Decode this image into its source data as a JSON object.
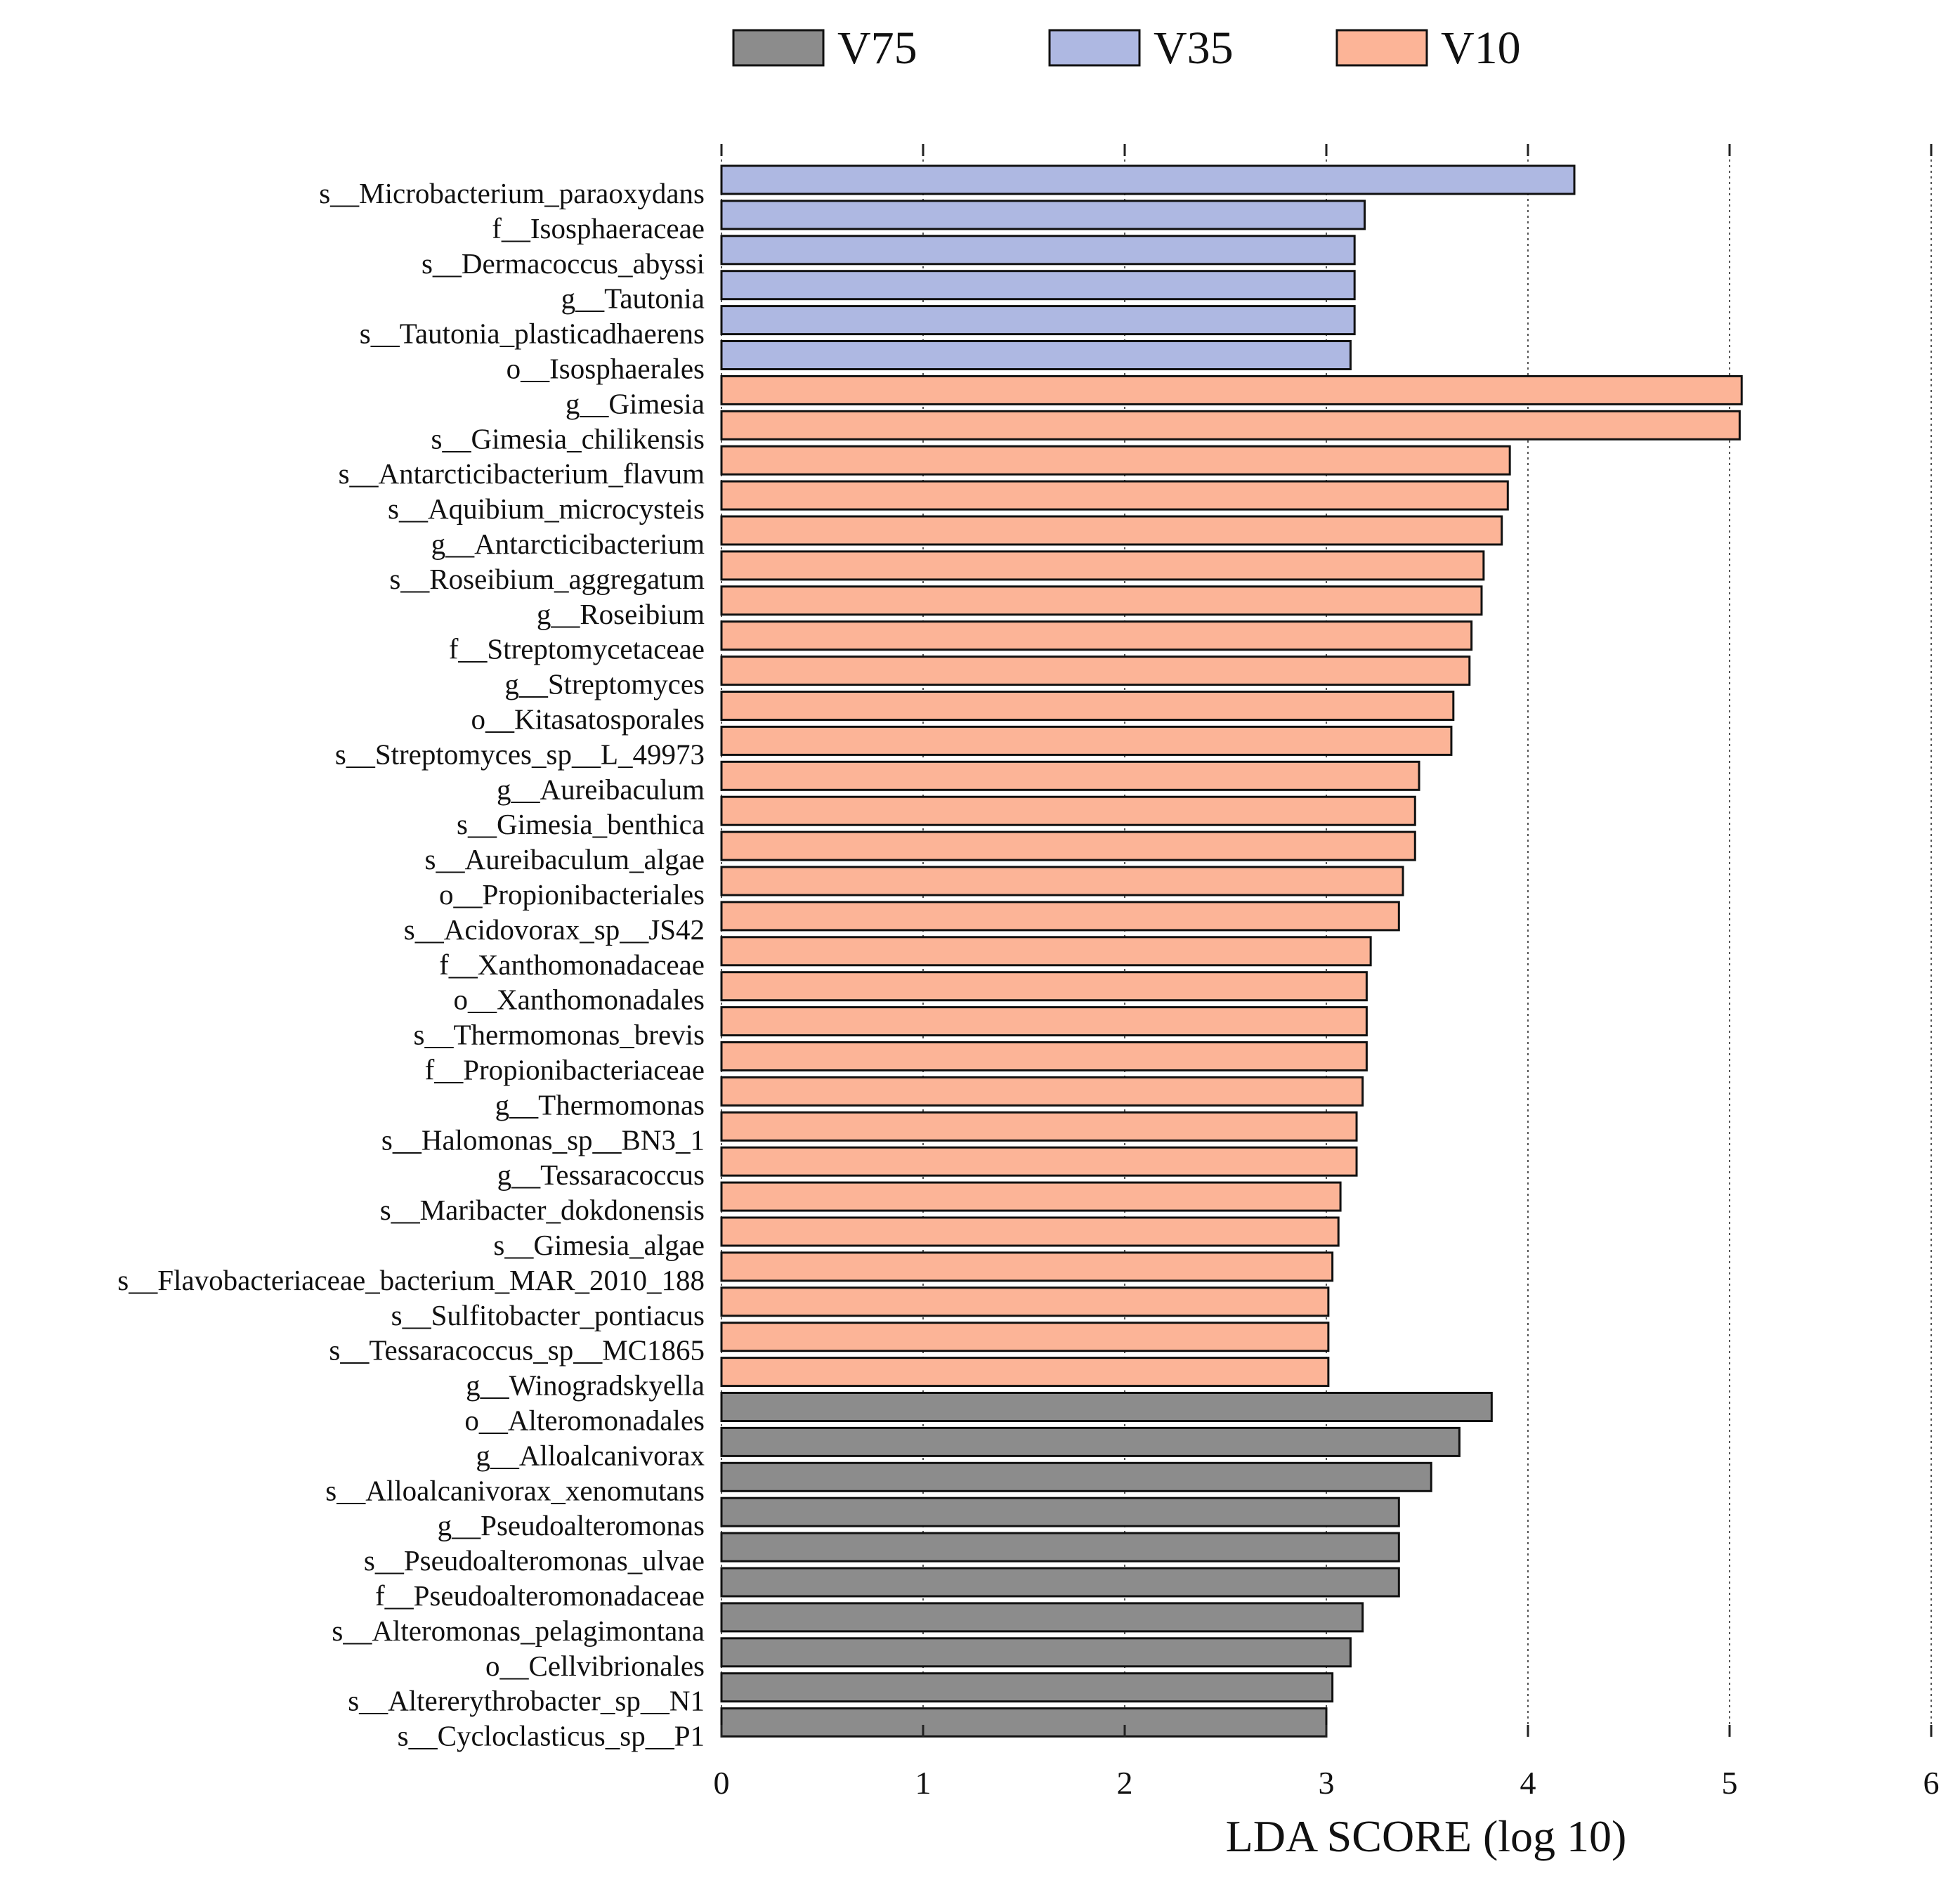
{
  "chart_data": {
    "type": "bar",
    "orientation": "horizontal",
    "xlabel": "LDA SCORE (log 10)",
    "xlim": [
      0,
      6
    ],
    "xticks": [
      "0",
      "1",
      "2",
      "3",
      "4",
      "5",
      "6"
    ],
    "grid": "vertical dotted",
    "legend_position": "top",
    "groups": [
      {
        "name": "V75",
        "color": "#8c8c8c"
      },
      {
        "name": "V35",
        "color": "#aeb8e2"
      },
      {
        "name": "V10",
        "color": "#fcb497"
      }
    ],
    "bars": [
      {
        "label": "s__Microbacterium_paraoxydans",
        "group": "V35",
        "value": 4.23
      },
      {
        "label": "f__Isosphaeraceae",
        "group": "V35",
        "value": 3.19
      },
      {
        "label": "s__Dermacoccus_abyssi",
        "group": "V35",
        "value": 3.14
      },
      {
        "label": "g__Tautonia",
        "group": "V35",
        "value": 3.14
      },
      {
        "label": "s__Tautonia_plasticadhaerens",
        "group": "V35",
        "value": 3.14
      },
      {
        "label": "o__Isosphaerales",
        "group": "V35",
        "value": 3.12
      },
      {
        "label": "g__Gimesia",
        "group": "V10",
        "value": 5.06
      },
      {
        "label": "s__Gimesia_chilikensis",
        "group": "V10",
        "value": 5.05
      },
      {
        "label": "s__Antarcticibacterium_flavum",
        "group": "V10",
        "value": 3.91
      },
      {
        "label": "s__Aquibium_microcysteis",
        "group": "V10",
        "value": 3.9
      },
      {
        "label": "g__Antarcticibacterium",
        "group": "V10",
        "value": 3.87
      },
      {
        "label": "s__Roseibium_aggregatum",
        "group": "V10",
        "value": 3.78
      },
      {
        "label": "g__Roseibium",
        "group": "V10",
        "value": 3.77
      },
      {
        "label": "f__Streptomycetaceae",
        "group": "V10",
        "value": 3.72
      },
      {
        "label": "g__Streptomyces",
        "group": "V10",
        "value": 3.71
      },
      {
        "label": "o__Kitasatosporales",
        "group": "V10",
        "value": 3.63
      },
      {
        "label": "s__Streptomyces_sp__L_49973",
        "group": "V10",
        "value": 3.62
      },
      {
        "label": "g__Aureibaculum",
        "group": "V10",
        "value": 3.46
      },
      {
        "label": "s__Gimesia_benthica",
        "group": "V10",
        "value": 3.44
      },
      {
        "label": "s__Aureibaculum_algae",
        "group": "V10",
        "value": 3.44
      },
      {
        "label": "o__Propionibacteriales",
        "group": "V10",
        "value": 3.38
      },
      {
        "label": "s__Acidovorax_sp__JS42",
        "group": "V10",
        "value": 3.36
      },
      {
        "label": "f__Xanthomonadaceae",
        "group": "V10",
        "value": 3.22
      },
      {
        "label": "o__Xanthomonadales",
        "group": "V10",
        "value": 3.2
      },
      {
        "label": "s__Thermomonas_brevis",
        "group": "V10",
        "value": 3.2
      },
      {
        "label": "f__Propionibacteriaceae",
        "group": "V10",
        "value": 3.2
      },
      {
        "label": "g__Thermomonas",
        "group": "V10",
        "value": 3.18
      },
      {
        "label": "s__Halomonas_sp__BN3_1",
        "group": "V10",
        "value": 3.15
      },
      {
        "label": "g__Tessaracoccus",
        "group": "V10",
        "value": 3.15
      },
      {
        "label": "s__Maribacter_dokdonensis",
        "group": "V10",
        "value": 3.07
      },
      {
        "label": "s__Gimesia_algae",
        "group": "V10",
        "value": 3.06
      },
      {
        "label": "s__Flavobacteriaceae_bacterium_MAR_2010_188",
        "group": "V10",
        "value": 3.03
      },
      {
        "label": "s__Sulfitobacter_pontiacus",
        "group": "V10",
        "value": 3.01
      },
      {
        "label": "s__Tessaracoccus_sp__MC1865",
        "group": "V10",
        "value": 3.01
      },
      {
        "label": "g__Winogradskyella",
        "group": "V10",
        "value": 3.01
      },
      {
        "label": "o__Alteromonadales",
        "group": "V75",
        "value": 3.82
      },
      {
        "label": "g__Alloalcanivorax",
        "group": "V75",
        "value": 3.66
      },
      {
        "label": "s__Alloalcanivorax_xenomutans",
        "group": "V75",
        "value": 3.52
      },
      {
        "label": "g__Pseudoalteromonas",
        "group": "V75",
        "value": 3.36
      },
      {
        "label": "s__Pseudoalteromonas_ulvae",
        "group": "V75",
        "value": 3.36
      },
      {
        "label": "f__Pseudoalteromonadaceae",
        "group": "V75",
        "value": 3.36
      },
      {
        "label": "s__Alteromonas_pelagimontana",
        "group": "V75",
        "value": 3.18
      },
      {
        "label": "o__Cellvibrionales",
        "group": "V75",
        "value": 3.12
      },
      {
        "label": "s__Altererythrobacter_sp__N1",
        "group": "V75",
        "value": 3.03
      },
      {
        "label": "s__Cycloclasticus_sp__P1",
        "group": "V75",
        "value": 3.0
      }
    ]
  }
}
